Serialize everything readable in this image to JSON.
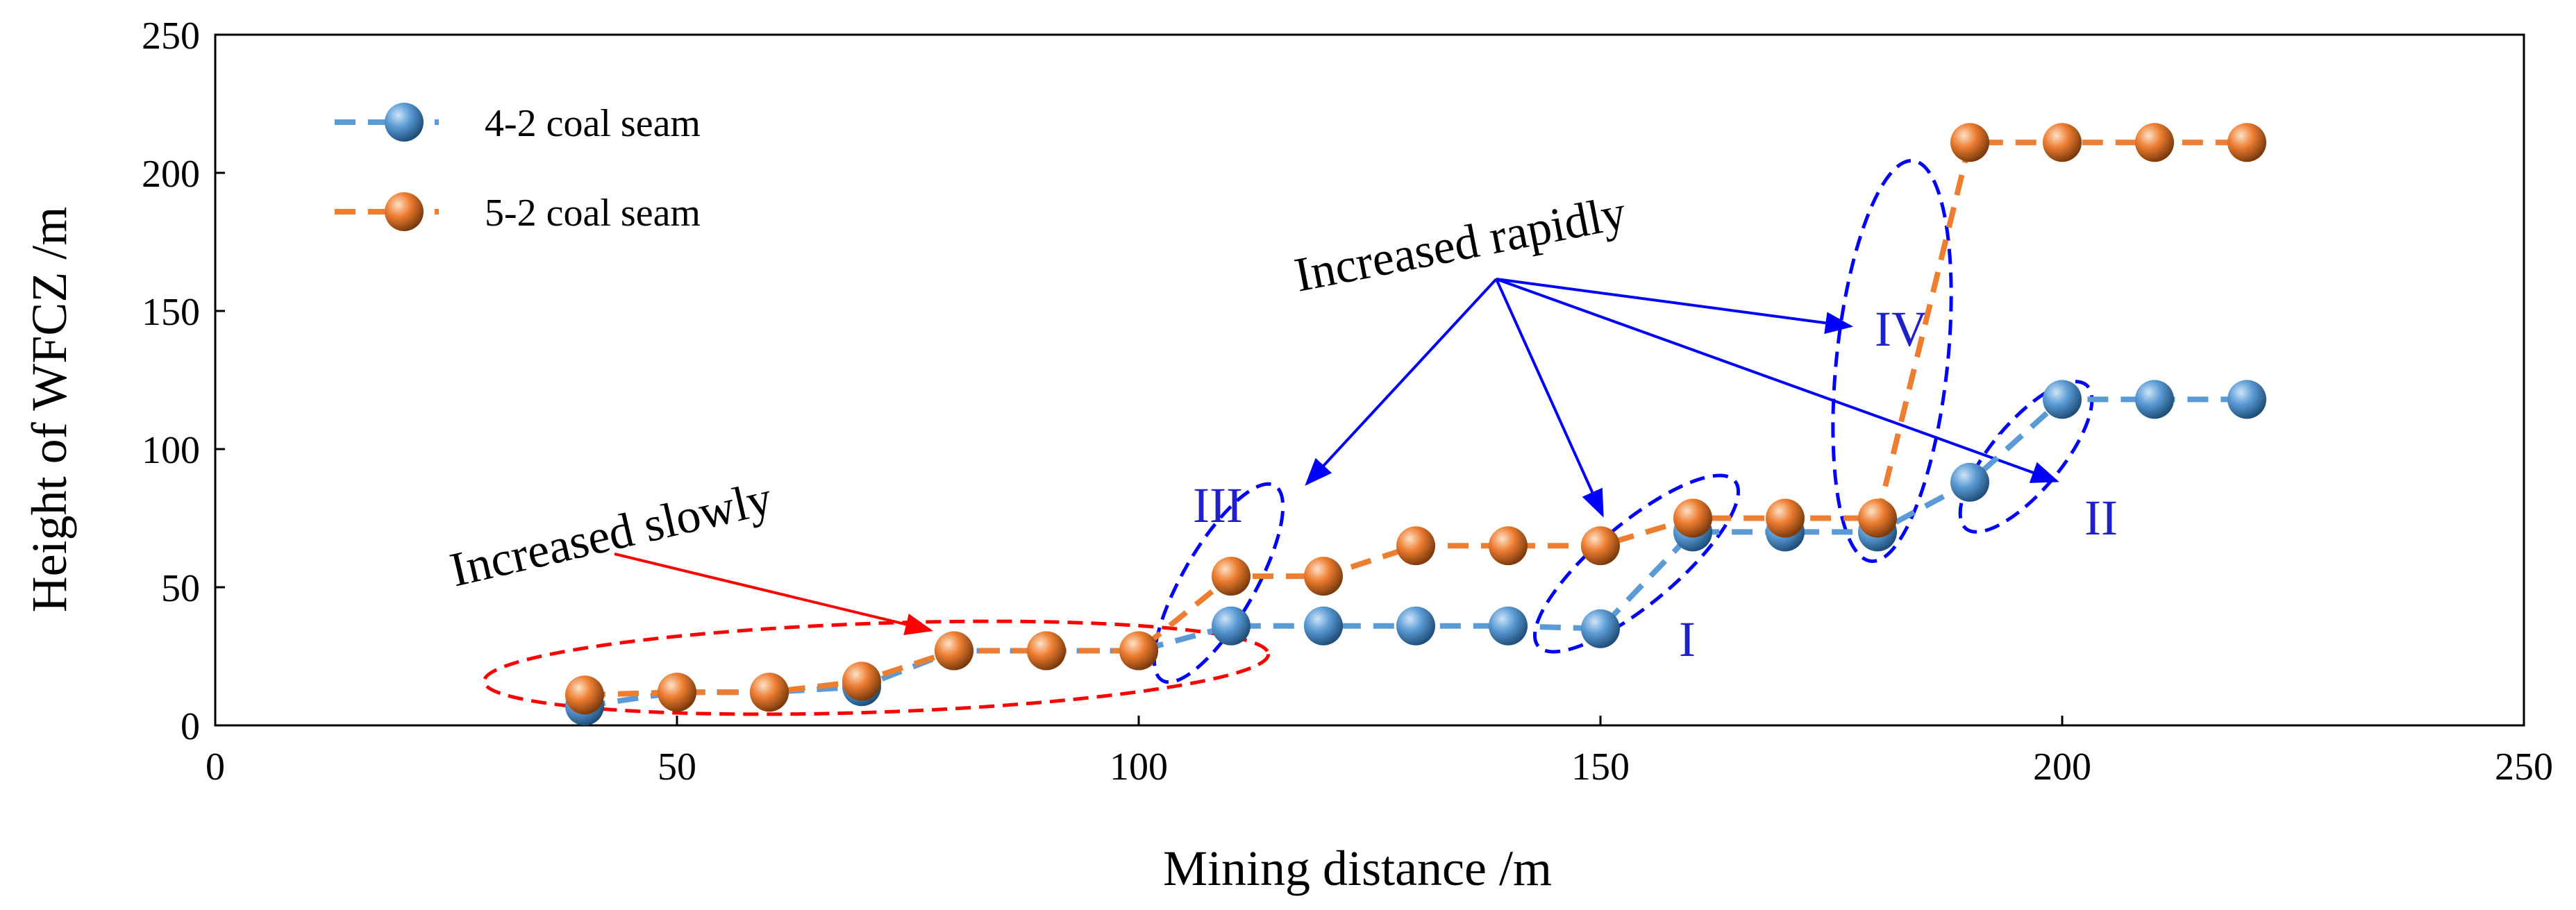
{
  "chart_data": {
    "type": "line",
    "title": "",
    "xlabel": "Mining  distance /m",
    "ylabel": "Height of  WFCZ /m",
    "xlim": [
      0,
      250
    ],
    "ylim": [
      0,
      250
    ],
    "xticks": [
      0,
      50,
      100,
      150,
      200,
      250
    ],
    "yticks": [
      0,
      50,
      100,
      150,
      200,
      250
    ],
    "grid": false,
    "legend_position": "top-left",
    "series": [
      {
        "name": "4-2 coal seam",
        "color": "#5B9BD5",
        "x": [
          40,
          50,
          60,
          70,
          80,
          90,
          100,
          110,
          120,
          130,
          140,
          150,
          160,
          170,
          180,
          190,
          200,
          210,
          220
        ],
        "y": [
          7,
          12,
          12,
          14,
          27,
          27,
          27,
          36,
          36,
          36,
          36,
          35,
          70,
          70,
          70,
          88,
          118,
          118,
          118
        ]
      },
      {
        "name": "5-2 coal seam",
        "color": "#ED7D31",
        "x": [
          40,
          50,
          60,
          70,
          80,
          90,
          100,
          110,
          120,
          130,
          140,
          150,
          160,
          170,
          180,
          190,
          200,
          210,
          220
        ],
        "y": [
          11,
          12,
          12,
          16,
          27,
          27,
          27,
          54,
          54,
          65,
          65,
          65,
          75,
          75,
          75,
          211,
          211,
          211,
          211
        ]
      }
    ],
    "annotations": {
      "increased_slowly": "Increased slowly",
      "increased_rapidly": "Increased rapidly",
      "region_I": "I",
      "region_II": "II",
      "region_III": "III",
      "region_IV": "IV"
    },
    "colors": {
      "red": "#FF0000",
      "blue": "#0000FF",
      "roman": "#2020C8"
    }
  }
}
